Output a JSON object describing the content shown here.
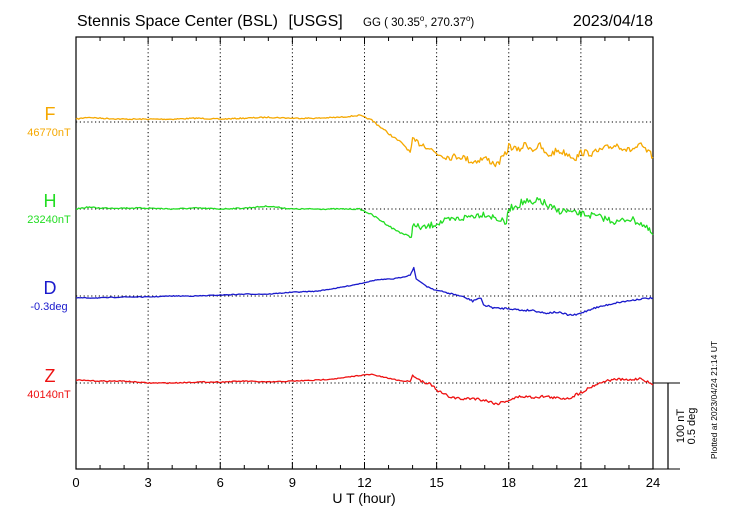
{
  "header": {
    "station": "Stennis Space Center (BSL)",
    "network": "[USGS]",
    "coords_prefix": "GG (",
    "lat": "30.35",
    "lon": "270.37",
    "date": "2023/04/18"
  },
  "side_note": "Plotted at 2023/04/24 21:14 UT",
  "scale_labels": [
    "100 nT",
    "0.5 deg"
  ],
  "chart_data": {
    "type": "line",
    "xlabel": "U T (hour)",
    "xlim": [
      0,
      24
    ],
    "x_ticks": [
      0,
      3,
      6,
      9,
      12,
      15,
      18,
      21,
      24
    ],
    "grid": true,
    "series": [
      {
        "name": "F",
        "baseline_label": "46770nT",
        "color": "#f5a800",
        "points": [
          [
            0,
            47
          ],
          [
            0.5,
            45
          ],
          [
            1,
            46
          ],
          [
            2,
            47
          ],
          [
            3,
            47
          ],
          [
            4,
            47
          ],
          [
            5,
            46
          ],
          [
            6,
            47
          ],
          [
            7,
            46
          ],
          [
            8,
            45
          ],
          [
            9,
            46
          ],
          [
            10,
            46
          ],
          [
            11,
            45
          ],
          [
            11.8,
            43
          ],
          [
            12.3,
            48
          ],
          [
            12.8,
            58
          ],
          [
            13.2,
            66
          ],
          [
            13.6,
            73
          ],
          [
            13.9,
            82
          ],
          [
            14,
            70
          ],
          [
            14.5,
            74
          ],
          [
            15,
            83
          ],
          [
            15.5,
            87
          ],
          [
            16,
            86
          ],
          [
            16.5,
            92
          ],
          [
            17,
            88
          ],
          [
            17.5,
            95
          ],
          [
            17.9,
            83
          ],
          [
            18,
            75
          ],
          [
            18.4,
            80
          ],
          [
            18.7,
            73
          ],
          [
            19,
            79
          ],
          [
            19.3,
            75
          ],
          [
            19.6,
            86
          ],
          [
            20,
            80
          ],
          [
            20.4,
            83
          ],
          [
            20.8,
            88
          ],
          [
            21,
            82
          ],
          [
            21.5,
            83
          ],
          [
            22,
            78
          ],
          [
            22.5,
            74
          ],
          [
            23,
            80
          ],
          [
            23.5,
            75
          ],
          [
            23.8,
            82
          ],
          [
            24,
            87
          ]
        ],
        "noise": [
          0.6,
          0.6,
          0.6,
          0.6,
          0.6,
          0.6,
          0.6,
          0.6,
          0.6,
          0.6,
          0.6,
          0.6,
          0.6,
          0.6,
          1.0,
          1.0,
          1.0,
          1.0,
          1.0,
          3.5,
          3.5,
          3.5,
          3.5,
          3.5,
          3.5,
          3.5,
          3.5,
          3.5,
          3.5,
          3.5,
          3.5,
          3.5,
          3.5,
          3.5,
          3.5,
          3.5,
          3.5,
          3.5,
          3.5,
          3.5,
          3.5,
          3.5,
          3.5,
          3.5,
          3.5
        ]
      },
      {
        "name": "H",
        "baseline_label": "23240nT",
        "color": "#22dd22",
        "points": [
          [
            0,
            50
          ],
          [
            0.5,
            48
          ],
          [
            1,
            49
          ],
          [
            2,
            49
          ],
          [
            3,
            49
          ],
          [
            4,
            50
          ],
          [
            5,
            49
          ],
          [
            6,
            50
          ],
          [
            7,
            49
          ],
          [
            8,
            47
          ],
          [
            9,
            50
          ],
          [
            10,
            50
          ],
          [
            11,
            50
          ],
          [
            11.8,
            50
          ],
          [
            12.3,
            56
          ],
          [
            12.8,
            64
          ],
          [
            13.2,
            71
          ],
          [
            13.6,
            76
          ],
          [
            13.95,
            80
          ],
          [
            14,
            68
          ],
          [
            14.5,
            70
          ],
          [
            15,
            65
          ],
          [
            15.5,
            62
          ],
          [
            16,
            60
          ],
          [
            16.5,
            57
          ],
          [
            17,
            55
          ],
          [
            17.5,
            60
          ],
          [
            17.9,
            65
          ],
          [
            18,
            50
          ],
          [
            18.4,
            45
          ],
          [
            18.7,
            42
          ],
          [
            19,
            46
          ],
          [
            19.3,
            40
          ],
          [
            19.6,
            47
          ],
          [
            20,
            52
          ],
          [
            20.4,
            52
          ],
          [
            20.8,
            55
          ],
          [
            21,
            55
          ],
          [
            21.5,
            57
          ],
          [
            22,
            60
          ],
          [
            22.5,
            64
          ],
          [
            23,
            60
          ],
          [
            23.5,
            65
          ],
          [
            23.8,
            72
          ],
          [
            24,
            77
          ]
        ],
        "noise": [
          0.6,
          0.6,
          0.6,
          0.6,
          0.6,
          0.6,
          0.6,
          0.6,
          0.6,
          0.6,
          0.6,
          0.6,
          0.6,
          0.6,
          1.0,
          1.0,
          1.0,
          1.0,
          1.0,
          3.5,
          3.5,
          3.5,
          3.5,
          3.5,
          3.5,
          3.5,
          3.5,
          3.5,
          3.5,
          4.5,
          4.5,
          4.5,
          4.5,
          4.5,
          3.5,
          3.5,
          3.5,
          3.5,
          3.5,
          3.5,
          3.5,
          3.5,
          3.5,
          3.5,
          3.5
        ]
      },
      {
        "name": "D",
        "baseline_label": "-0.3deg",
        "color": "#1a1acc",
        "points": [
          [
            0,
            52
          ],
          [
            1,
            52
          ],
          [
            2,
            51
          ],
          [
            3,
            51
          ],
          [
            4,
            50
          ],
          [
            5,
            50
          ],
          [
            6,
            49
          ],
          [
            7,
            48
          ],
          [
            8,
            48
          ],
          [
            9,
            46
          ],
          [
            10,
            45
          ],
          [
            11,
            41
          ],
          [
            11.8,
            37
          ],
          [
            12.5,
            33
          ],
          [
            13.2,
            32
          ],
          [
            13.6,
            30
          ],
          [
            13.9,
            28
          ],
          [
            14.05,
            20
          ],
          [
            14.15,
            32
          ],
          [
            14.6,
            40
          ],
          [
            15,
            44
          ],
          [
            15.5,
            47
          ],
          [
            16,
            50
          ],
          [
            16.5,
            55
          ],
          [
            16.8,
            52
          ],
          [
            17,
            60
          ],
          [
            17.5,
            63
          ],
          [
            18,
            63
          ],
          [
            18.5,
            65
          ],
          [
            19,
            65
          ],
          [
            19.5,
            68
          ],
          [
            20,
            67
          ],
          [
            20.5,
            70
          ],
          [
            20.8,
            70
          ],
          [
            21,
            68
          ],
          [
            21.5,
            63
          ],
          [
            22,
            60
          ],
          [
            22.5,
            57
          ],
          [
            23,
            55
          ],
          [
            23.5,
            53
          ],
          [
            24,
            52
          ]
        ],
        "noise": [
          0.4,
          0.4,
          0.4,
          0.4,
          0.4,
          0.4,
          0.4,
          0.4,
          0.4,
          0.4,
          0.4,
          0.4,
          0.4,
          0.4,
          0.4,
          0.4,
          0.4,
          0.0,
          0.0,
          0.8,
          0.8,
          0.8,
          0.8,
          1.5,
          1.5,
          1.2,
          1.0,
          1.0,
          1.0,
          1.0,
          1.0,
          1.0,
          1.0,
          1.0,
          1.0,
          0.8,
          0.8,
          0.8,
          0.8,
          0.8,
          0.8
        ]
      },
      {
        "name": "Z",
        "baseline_label": "40140nT",
        "color": "#ee1111",
        "points": [
          [
            0,
            47
          ],
          [
            1,
            48
          ],
          [
            2,
            48
          ],
          [
            3,
            50
          ],
          [
            4,
            50
          ],
          [
            5,
            49
          ],
          [
            6,
            49
          ],
          [
            7,
            48
          ],
          [
            8,
            49
          ],
          [
            9,
            48
          ],
          [
            10,
            47
          ],
          [
            11,
            45
          ],
          [
            11.8,
            42
          ],
          [
            12.3,
            41
          ],
          [
            12.8,
            44
          ],
          [
            13.2,
            46
          ],
          [
            13.6,
            48
          ],
          [
            13.9,
            48
          ],
          [
            14,
            42
          ],
          [
            14.3,
            47
          ],
          [
            14.8,
            52
          ],
          [
            15,
            58
          ],
          [
            15.5,
            64
          ],
          [
            16,
            67
          ],
          [
            16.5,
            66
          ],
          [
            17,
            68
          ],
          [
            17.5,
            72
          ],
          [
            18,
            68
          ],
          [
            18.5,
            64
          ],
          [
            19,
            65
          ],
          [
            19.5,
            64
          ],
          [
            20,
            66
          ],
          [
            20.5,
            66
          ],
          [
            21,
            60
          ],
          [
            21.5,
            53
          ],
          [
            22,
            48
          ],
          [
            22.5,
            46
          ],
          [
            23,
            47
          ],
          [
            23.5,
            45
          ],
          [
            24,
            52
          ]
        ],
        "noise": [
          0.5,
          0.5,
          0.5,
          0.5,
          0.5,
          0.5,
          0.5,
          0.5,
          0.5,
          0.5,
          0.5,
          0.5,
          0.5,
          0.5,
          0.5,
          0.5,
          0.5,
          0.5,
          0.5,
          1.5,
          1.5,
          1.5,
          1.5,
          1.5,
          1.5,
          1.5,
          1.5,
          1.5,
          1.5,
          1.5,
          1.5,
          1.5,
          1.5,
          1.5,
          1.2,
          1.2,
          1.2,
          1.2,
          1.2,
          1.2
        ]
      }
    ]
  }
}
